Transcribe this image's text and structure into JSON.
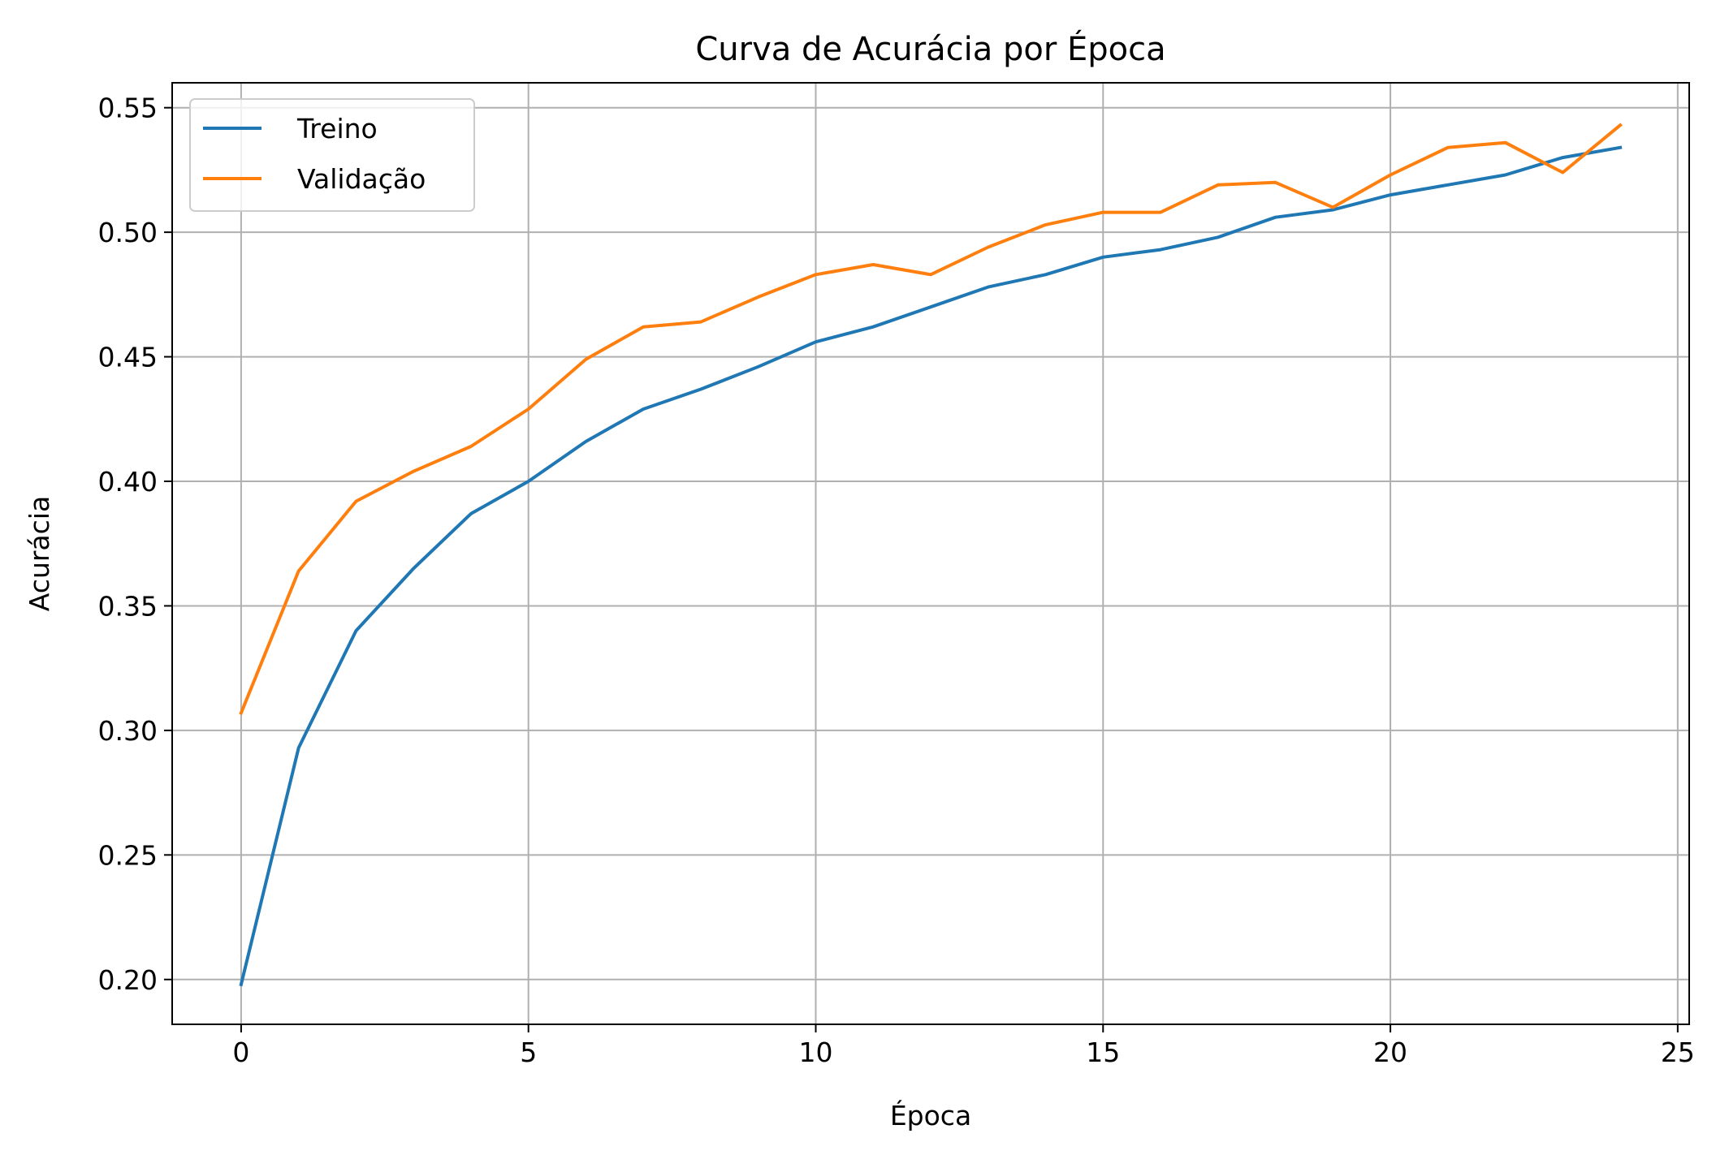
{
  "chart_data": {
    "type": "line",
    "title": "Curva de Acurácia por Época",
    "xlabel": "Época",
    "ylabel": "Acurácia",
    "xlim": [
      -1.2,
      25.2
    ],
    "ylim": [
      0.182,
      0.56
    ],
    "xticks": [
      0,
      5,
      10,
      15,
      20,
      25
    ],
    "xtick_labels": [
      "0",
      "5",
      "10",
      "15",
      "20",
      "25"
    ],
    "yticks": [
      0.2,
      0.25,
      0.3,
      0.35,
      0.4,
      0.45,
      0.5,
      0.55
    ],
    "ytick_labels": [
      "0.20",
      "0.25",
      "0.30",
      "0.35",
      "0.40",
      "0.45",
      "0.50",
      "0.55"
    ],
    "grid": true,
    "legend_position": "top-left",
    "x": [
      0,
      1,
      2,
      3,
      4,
      5,
      6,
      7,
      8,
      9,
      10,
      11,
      12,
      13,
      14,
      15,
      16,
      17,
      18,
      19,
      20,
      21,
      22,
      23,
      24
    ],
    "series": [
      {
        "name": "Treino",
        "color": "#1f77b4",
        "values": [
          0.198,
          0.293,
          0.34,
          0.365,
          0.387,
          0.4,
          0.416,
          0.429,
          0.437,
          0.446,
          0.456,
          0.462,
          0.47,
          0.478,
          0.483,
          0.49,
          0.493,
          0.498,
          0.506,
          0.509,
          0.515,
          0.519,
          0.523,
          0.53,
          0.534
        ]
      },
      {
        "name": "Validação",
        "color": "#ff7f0e",
        "values": [
          0.307,
          0.364,
          0.392,
          0.404,
          0.414,
          0.429,
          0.449,
          0.462,
          0.464,
          0.474,
          0.483,
          0.487,
          0.483,
          0.494,
          0.503,
          0.508,
          0.508,
          0.519,
          0.52,
          0.51,
          0.523,
          0.534,
          0.536,
          0.524,
          0.543
        ]
      }
    ]
  }
}
